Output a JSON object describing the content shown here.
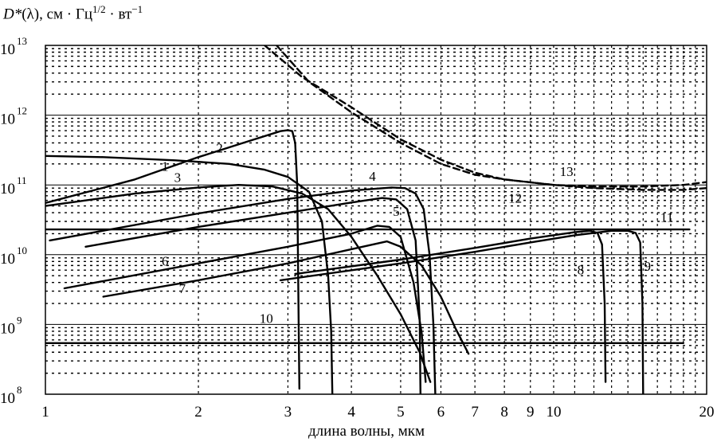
{
  "chart_data": {
    "type": "line",
    "title": {
      "symbol": "D*",
      "text_a": "(λ), см · Гц",
      "exp_a": "1/2",
      "text_b": " · вт",
      "exp_b": "−1"
    },
    "xlabel": "длина волны, мкм",
    "ylabel": "",
    "x_scale": "log",
    "y_scale": "log",
    "xlim": [
      1,
      20
    ],
    "ylim": [
      100000000.0,
      10000000000000.0
    ],
    "x_ticks": [
      1,
      2,
      3,
      4,
      5,
      6,
      7,
      8,
      9,
      10,
      20
    ],
    "x_tick_labels": [
      "1",
      "2",
      "3",
      "4",
      "5",
      "6",
      "7",
      "8",
      "9",
      "10",
      "20"
    ],
    "y_ticks": [
      100000000.0,
      1000000000.0,
      10000000000.0,
      100000000000.0,
      1000000000000.0,
      10000000000000.0
    ],
    "y_tick_labels": [
      {
        "base": "10",
        "exp": "8"
      },
      {
        "base": "10",
        "exp": "9"
      },
      {
        "base": "10",
        "exp": "10"
      },
      {
        "base": "10",
        "exp": "11"
      },
      {
        "base": "10",
        "exp": "12"
      },
      {
        "base": "10",
        "exp": "13"
      }
    ],
    "grid": true,
    "series": [
      {
        "label": "1",
        "style": "solid",
        "label_at": [
          1.72,
          160000000000.0
        ],
        "points": [
          [
            1.0,
            55000000000.0
          ],
          [
            1.5,
            120000000000.0
          ],
          [
            2.0,
            250000000000.0
          ],
          [
            2.5,
            420000000000.0
          ],
          [
            2.9,
            590000000000.0
          ],
          [
            3.0,
            610000000000.0
          ],
          [
            3.06,
            590000000000.0
          ],
          [
            3.1,
            400000000000.0
          ],
          [
            3.13,
            100000000000.0
          ],
          [
            3.15,
            1000000000.0
          ],
          [
            3.16,
            120000000.0
          ]
        ]
      },
      {
        "label": "2",
        "style": "solid",
        "label_at": [
          2.2,
          290000000000.0
        ],
        "points": [
          [
            1.0,
            260000000000.0
          ],
          [
            1.3,
            250000000000.0
          ],
          [
            1.8,
            225000000000.0
          ],
          [
            2.3,
            200000000000.0
          ],
          [
            2.7,
            165000000000.0
          ],
          [
            3.0,
            130000000000.0
          ],
          [
            3.3,
            80000000000.0
          ],
          [
            3.5,
            30000000000.0
          ],
          [
            3.6,
            5000000000.0
          ],
          [
            3.65,
            800000000.0
          ],
          [
            3.67,
            100000000.0
          ]
        ]
      },
      {
        "label": "3",
        "style": "solid",
        "label_at": [
          1.82,
          110000000000.0
        ],
        "points": [
          [
            1.0,
            50000000000.0
          ],
          [
            1.5,
            75000000000.0
          ],
          [
            2.0,
            92000000000.0
          ],
          [
            2.4,
            100000000000.0
          ],
          [
            2.8,
            95000000000.0
          ],
          [
            3.2,
            75000000000.0
          ],
          [
            3.6,
            45000000000.0
          ],
          [
            4.0,
            18000000000.0
          ],
          [
            4.5,
            5000000000.0
          ],
          [
            5.0,
            1400000000.0
          ],
          [
            5.45,
            400000000.0
          ],
          [
            5.72,
            150000000.0
          ]
        ]
      },
      {
        "label": "4",
        "style": "solid",
        "label_at": [
          4.4,
          115000000000.0
        ],
        "points": [
          [
            1.02,
            16000000000.0
          ],
          [
            2.0,
            39000000000.0
          ],
          [
            3.0,
            63000000000.0
          ],
          [
            4.0,
            83000000000.0
          ],
          [
            4.8,
            92000000000.0
          ],
          [
            5.1,
            90000000000.0
          ],
          [
            5.35,
            75000000000.0
          ],
          [
            5.55,
            45000000000.0
          ],
          [
            5.7,
            10000000000.0
          ],
          [
            5.8,
            1000000000.0
          ],
          [
            5.85,
            100000000.0
          ]
        ]
      },
      {
        "label": "5",
        "style": "solid",
        "label_at": [
          4.9,
          36000000000.0
        ],
        "points": [
          [
            1.2,
            13000000000.0
          ],
          [
            2.0,
            25000000000.0
          ],
          [
            3.0,
            40000000000.0
          ],
          [
            4.0,
            56000000000.0
          ],
          [
            4.6,
            65000000000.0
          ],
          [
            4.9,
            62000000000.0
          ],
          [
            5.15,
            45000000000.0
          ],
          [
            5.35,
            16000000000.0
          ],
          [
            5.45,
            1200000000.0
          ],
          [
            5.47,
            100000000.0
          ]
        ]
      },
      {
        "label": "6",
        "style": "solid",
        "label_at": [
          1.72,
          7000000000.0
        ],
        "points": [
          [
            1.09,
            3300000000.0
          ],
          [
            2.0,
            7500000000.0
          ],
          [
            3.0,
            13000000000.0
          ],
          [
            4.0,
            20000000000.0
          ],
          [
            4.5,
            26000000000.0
          ],
          [
            4.75,
            25000000000.0
          ],
          [
            5.0,
            18000000000.0
          ],
          [
            5.3,
            4000000000.0
          ],
          [
            5.5,
            750000000.0
          ],
          [
            5.6,
            150000000.0
          ]
        ]
      },
      {
        "label": "7",
        "style": "solid",
        "label_at": [
          1.86,
          2800000000.0
        ],
        "points": [
          [
            1.3,
            2500000000.0
          ],
          [
            2.0,
            4300000000.0
          ],
          [
            3.0,
            7500000000.0
          ],
          [
            4.0,
            12000000000.0
          ],
          [
            4.7,
            15500000000.0
          ],
          [
            5.0,
            13000000000.0
          ],
          [
            5.5,
            7000000000.0
          ],
          [
            6.0,
            2500000000.0
          ],
          [
            6.4,
            900000000.0
          ],
          [
            6.8,
            380000000.0
          ]
        ]
      },
      {
        "label": "8",
        "style": "solid",
        "label_at": [
          11.3,
          5200000000.0
        ],
        "points": [
          [
            3.1,
            5300000000.0
          ],
          [
            5.0,
            8500000000.0
          ],
          [
            7.0,
            12500000000.0
          ],
          [
            9.0,
            17000000000.0
          ],
          [
            11.0,
            21000000000.0
          ],
          [
            11.8,
            22000000000.0
          ],
          [
            12.2,
            20500000000.0
          ],
          [
            12.45,
            14000000000.0
          ],
          [
            12.6,
            2000000000.0
          ],
          [
            12.65,
            150000000.0
          ]
        ]
      },
      {
        "label": "9",
        "style": "solid",
        "label_at": [
          15.3,
          5900000000.0
        ],
        "points": [
          [
            2.9,
            4300000000.0
          ],
          [
            5.0,
            7500000000.0
          ],
          [
            7.0,
            11000000000.0
          ],
          [
            9.0,
            15000000000.0
          ],
          [
            11.0,
            19000000000.0
          ],
          [
            13.0,
            22000000000.0
          ],
          [
            14.0,
            22000000000.0
          ],
          [
            14.5,
            20500000000.0
          ],
          [
            14.8,
            15000000000.0
          ],
          [
            14.95,
            2000000000.0
          ],
          [
            15.0,
            100000000.0
          ]
        ]
      },
      {
        "label": "10",
        "style": "solid",
        "label_at": [
          2.72,
          1050000000.0
        ],
        "points": [
          [
            1.0,
            540000000.0
          ],
          [
            18.0,
            540000000.0
          ]
        ]
      },
      {
        "label": "11",
        "style": "solid",
        "label_at": [
          16.7,
          29500000000.0
        ],
        "points": [
          [
            1.0,
            23000000000.0
          ],
          [
            18.5,
            23000000000.0
          ]
        ]
      },
      {
        "label": "12",
        "style": "dashed",
        "label_at": [
          8.4,
          56000000000.0
        ],
        "points": [
          [
            2.85,
            10000000000000.0
          ],
          [
            3.3,
            3000000000000.0
          ],
          [
            4.0,
            1100000000000.0
          ],
          [
            5.0,
            400000000000.0
          ],
          [
            6.0,
            200000000000.0
          ],
          [
            7.0,
            140000000000.0
          ],
          [
            8.0,
            120000000000.0
          ],
          [
            10.0,
            100000000000.0
          ],
          [
            12.0,
            90000000000.0
          ],
          [
            15.0,
            85000000000.0
          ],
          [
            18.0,
            85000000000.0
          ],
          [
            20.0,
            90000000000.0
          ]
        ]
      },
      {
        "label": "13",
        "style": "dashed",
        "label_at": [
          10.6,
          135000000000.0
        ],
        "points": [
          [
            2.7,
            10000000000000.0
          ],
          [
            3.2,
            3500000000000.0
          ],
          [
            4.0,
            1300000000000.0
          ],
          [
            5.0,
            450000000000.0
          ],
          [
            6.0,
            230000000000.0
          ],
          [
            7.0,
            150000000000.0
          ],
          [
            8.0,
            120000000000.0
          ],
          [
            10.0,
            100000000000.0
          ],
          [
            12.0,
            95000000000.0
          ],
          [
            15.0,
            95000000000.0
          ],
          [
            18.0,
            100000000000.0
          ],
          [
            20.0,
            110000000000.0
          ]
        ]
      }
    ]
  }
}
